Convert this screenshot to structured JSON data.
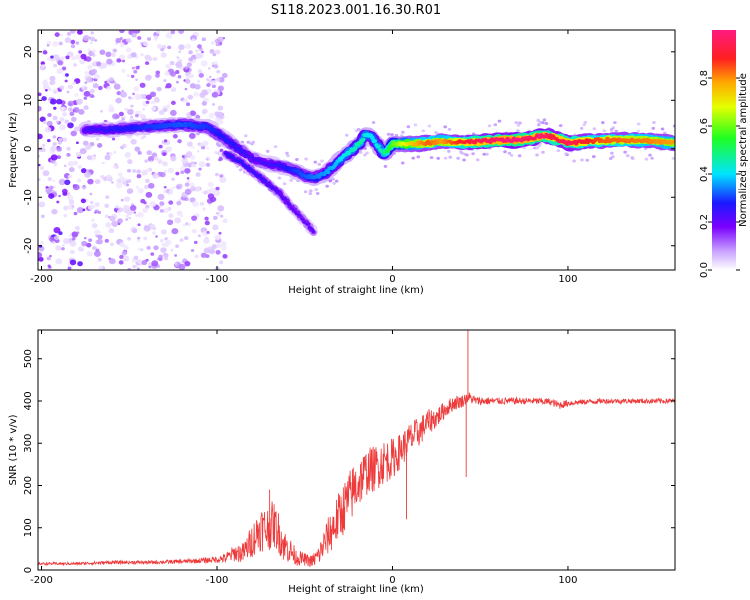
{
  "title": "S118.2023.001.16.30.R01",
  "colors": {
    "snr_line": "#ee3a3a",
    "axis": "#000000",
    "background": "#ffffff"
  },
  "chart_data": [
    {
      "type": "heatmap",
      "xlabel": "Height of straight line (km)",
      "ylabel": "Frequency (Hz)",
      "xlim": [
        -202,
        161
      ],
      "ylim": [
        -25,
        24.5
      ],
      "x_ticks": [
        -200,
        -100,
        0,
        100
      ],
      "x_tick_labels": [
        "-200",
        "-100",
        "0",
        "100"
      ],
      "y_ticks": [
        -20,
        -10,
        0,
        10,
        20
      ],
      "y_tick_labels": [
        "-20",
        "-10",
        "0",
        "10",
        "20"
      ],
      "colorbar": {
        "label": "Normalized spectral amplitude",
        "range": [
          0,
          1
        ],
        "ticks": [
          0.0,
          0.2,
          0.4,
          0.6,
          0.8
        ],
        "tick_labels": [
          "0.0",
          "0.2",
          "0.4",
          "0.6",
          "0.8"
        ],
        "colormap": "rainbow (white-violet-blue-cyan-green-yellow-orange-red-magenta)"
      },
      "ridge": {
        "x": [
          -175,
          -160,
          -140,
          -120,
          -105,
          -95,
          -88,
          -80,
          -72,
          -64,
          -56,
          -50,
          -44,
          -38,
          -32,
          -26,
          -22,
          -18,
          -15,
          -12,
          -8,
          -5,
          -3,
          0,
          10,
          20,
          28,
          40,
          50,
          60,
          70,
          80,
          85,
          90,
          100,
          110,
          120,
          140,
          161
        ],
        "y": [
          4,
          4,
          4.5,
          5,
          4.5,
          2,
          0,
          -2,
          -3,
          -3.5,
          -4.5,
          -5.5,
          -6,
          -5,
          -3,
          -1,
          0,
          1.5,
          3,
          2.5,
          0.5,
          -1,
          -0.5,
          1,
          1,
          1.2,
          1.5,
          1.3,
          1.5,
          1.8,
          1.8,
          2.2,
          2.8,
          2.5,
          1.2,
          1.5,
          1.8,
          1.8,
          1.2
        ],
        "amplitude": [
          0.22,
          0.25,
          0.28,
          0.3,
          0.28,
          0.26,
          0.25,
          0.22,
          0.22,
          0.24,
          0.28,
          0.3,
          0.32,
          0.34,
          0.36,
          0.4,
          0.42,
          0.45,
          0.4,
          0.38,
          0.4,
          0.45,
          0.5,
          0.55,
          0.7,
          0.8,
          0.75,
          0.85,
          0.9,
          0.92,
          0.95,
          0.9,
          0.95,
          0.88,
          0.9,
          0.85,
          0.8,
          0.78,
          0.75
        ]
      },
      "secondary_branch": {
        "x": [
          -95,
          -85,
          -75,
          -65,
          -55,
          -45
        ],
        "y": [
          -1,
          -3,
          -6,
          -9,
          -13,
          -17
        ],
        "amplitude": [
          0.25,
          0.25,
          0.24,
          0.22,
          0.2,
          0.2
        ]
      },
      "noise_region": {
        "x_range": [
          -202,
          -95
        ],
        "y_range": [
          -25,
          24.5
        ],
        "amplitude_range": [
          0.02,
          0.15
        ]
      }
    },
    {
      "type": "line",
      "xlabel": "Height of straight line (km)",
      "ylabel": "SNR (10 * v/v)",
      "xlim": [
        -202,
        161
      ],
      "ylim": [
        0,
        568
      ],
      "x_ticks": [
        -200,
        -100,
        0,
        100
      ],
      "x_tick_labels": [
        "-200",
        "-100",
        "0",
        "100"
      ],
      "y_ticks": [
        0,
        100,
        200,
        300,
        400,
        500
      ],
      "y_tick_labels": [
        "0",
        "100",
        "200",
        "300",
        "400",
        "500"
      ],
      "series": [
        {
          "x": [
            -202,
            -180,
            -160,
            -140,
            -120,
            -110,
            -100,
            -95,
            -90,
            -85,
            -80,
            -75,
            -72,
            -68,
            -65,
            -62,
            -58,
            -55,
            -50,
            -46,
            -42,
            -38,
            -34,
            -30,
            -26,
            -22,
            -18,
            -14,
            -10,
            -6,
            -2,
            2,
            6,
            10,
            16,
            20,
            25,
            30,
            35,
            40,
            43,
            45,
            48,
            52,
            60,
            70,
            80,
            90,
            95,
            100,
            110,
            120,
            130,
            140,
            150,
            161
          ],
          "y": [
            15,
            15,
            18,
            18,
            20,
            22,
            25,
            28,
            40,
            40,
            70,
            100,
            95,
            110,
            90,
            60,
            45,
            30,
            25,
            20,
            35,
            70,
            100,
            130,
            160,
            190,
            215,
            235,
            240,
            255,
            260,
            270,
            290,
            310,
            330,
            350,
            360,
            380,
            395,
            400,
            410,
            405,
            400,
            400,
            400,
            400,
            400,
            398,
            390,
            395,
            398,
            400,
            400,
            400,
            400,
            400
          ],
          "noise": [
            3,
            3,
            4,
            4,
            5,
            6,
            8,
            12,
            20,
            25,
            40,
            55,
            55,
            55,
            50,
            40,
            30,
            20,
            15,
            15,
            25,
            40,
            55,
            60,
            65,
            65,
            60,
            55,
            55,
            55,
            50,
            45,
            40,
            40,
            35,
            30,
            25,
            20,
            18,
            15,
            15,
            12,
            10,
            10,
            8,
            8,
            8,
            8,
            10,
            8,
            6,
            6,
            6,
            6,
            6,
            6
          ]
        }
      ],
      "spikes": [
        {
          "x": 43,
          "y": 568
        },
        {
          "x": 42,
          "y": 220
        },
        {
          "x": 8,
          "y": 120
        },
        {
          "x": -70,
          "y": 190
        }
      ]
    }
  ]
}
